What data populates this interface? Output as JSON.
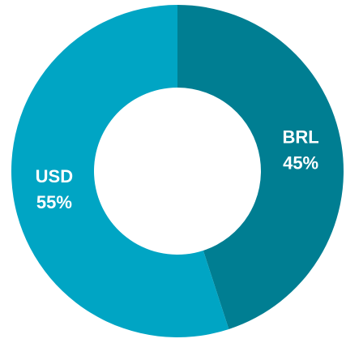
{
  "chart_data": {
    "type": "donut",
    "categories": [
      "BRL",
      "USD"
    ],
    "values": [
      45,
      55
    ],
    "value_labels": [
      "45%",
      "55%"
    ],
    "colors": [
      "#007e92",
      "#00a5c4"
    ]
  }
}
